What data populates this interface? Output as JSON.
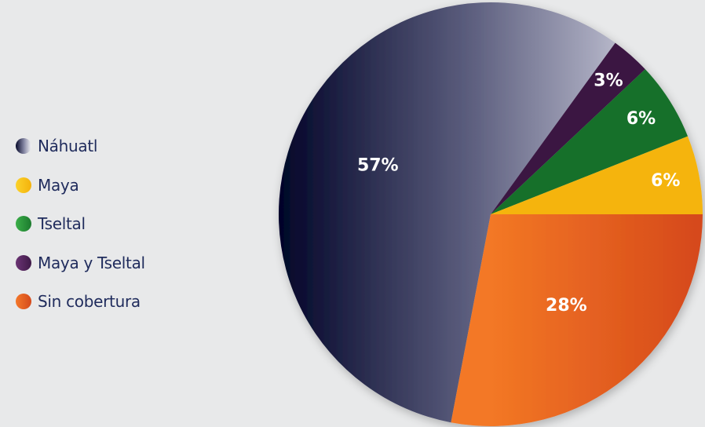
{
  "chart_data": {
    "type": "pie",
    "slices": [
      {
        "name": "Náhuatl",
        "value": 57,
        "label": "57%",
        "color": "#4a4c6e"
      },
      {
        "name": "Maya y Tseltal",
        "value": 3,
        "label": "3%",
        "color": "#5b2a63"
      },
      {
        "name": "Tseltal",
        "value": 6,
        "label": "6%",
        "color": "#2e9a3e"
      },
      {
        "name": "Maya",
        "value": 6,
        "label": "6%",
        "color": "#f7bf16"
      },
      {
        "name": "Sin cobertura",
        "value": 28,
        "label": "28%",
        "color": "#ec6a22"
      }
    ],
    "legend": {
      "placement": "left",
      "items": [
        {
          "label": "Náhuatl",
          "color": "#4a4c6e"
        },
        {
          "label": "Maya",
          "color": "#f7bf16"
        },
        {
          "label": "Tseltal",
          "color": "#2e9a3e"
        },
        {
          "label": "Maya y Tseltal",
          "color": "#5b2a63"
        },
        {
          "label": "Sin cobertura",
          "color": "#ec6a22"
        }
      ]
    }
  }
}
